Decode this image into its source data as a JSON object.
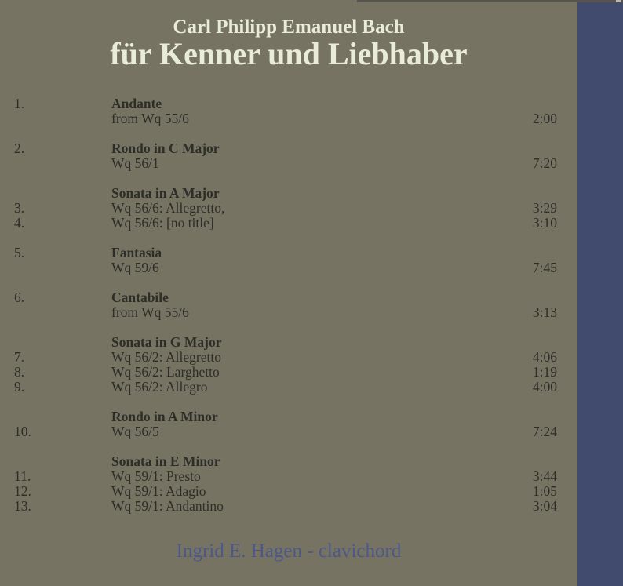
{
  "page": {
    "background_color": "#767363",
    "stripe_color": "#414b6e",
    "top_band_color": "#56554d",
    "title_color": "#e9ecd8",
    "track_text_color": "#2e2e28",
    "credit_color": "#4c588a"
  },
  "header": {
    "artist": "Carl Philipp Emanuel Bach",
    "album_title": "für Kenner und Liebhaber"
  },
  "tracklist": {
    "sections": [
      {
        "header": {
          "number": "1.",
          "title": "Andante"
        },
        "rows": [
          {
            "number": "",
            "text": "from Wq 55/6",
            "time": "2:00"
          }
        ]
      },
      {
        "header": {
          "number": "2.",
          "title": "Rondo in C Major"
        },
        "rows": [
          {
            "number": "",
            "text": "Wq 56/1",
            "time": "7:20"
          }
        ]
      },
      {
        "header": {
          "number": "",
          "title": "Sonata in A Major"
        },
        "rows": [
          {
            "number": "3.",
            "text": "Wq 56/6: Allegretto,",
            "time": "3:29"
          },
          {
            "number": "4.",
            "text": "Wq 56/6: [no title]",
            "time": "3:10"
          }
        ]
      },
      {
        "header": {
          "number": "5.",
          "title": "Fantasia"
        },
        "rows": [
          {
            "number": "",
            "text": "Wq 59/6",
            "time": "7:45"
          }
        ]
      },
      {
        "header": {
          "number": "6.",
          "title": "Cantabile"
        },
        "rows": [
          {
            "number": "",
            "text": "from Wq 55/6",
            "time": "3:13"
          }
        ]
      },
      {
        "header": {
          "number": "",
          "title": "Sonata in G Major"
        },
        "rows": [
          {
            "number": "7.",
            "text": "Wq 56/2: Allegretto",
            "time": "4:06"
          },
          {
            "number": "8.",
            "text": "Wq 56/2: Larghetto",
            "time": "1:19"
          },
          {
            "number": "9.",
            "text": "Wq 56/2: Allegro",
            "time": "4:00"
          }
        ]
      },
      {
        "header": {
          "number": "",
          "title": "Rondo in A Minor"
        },
        "rows": [
          {
            "number": "10.",
            "text": "Wq 56/5",
            "time": "7:24"
          }
        ]
      },
      {
        "header": {
          "number": "",
          "title": "Sonata in E Minor"
        },
        "rows": [
          {
            "number": "11.",
            "text": "Wq 59/1: Presto",
            "time": "3:44"
          },
          {
            "number": "12.",
            "text": "Wq 59/1: Adagio",
            "time": "1:05"
          },
          {
            "number": "13.",
            "text": "Wq 59/1: Andantino",
            "time": "3:04"
          }
        ]
      }
    ]
  },
  "credit": {
    "performer_line": "Ingrid E. Hagen - clavichord"
  }
}
